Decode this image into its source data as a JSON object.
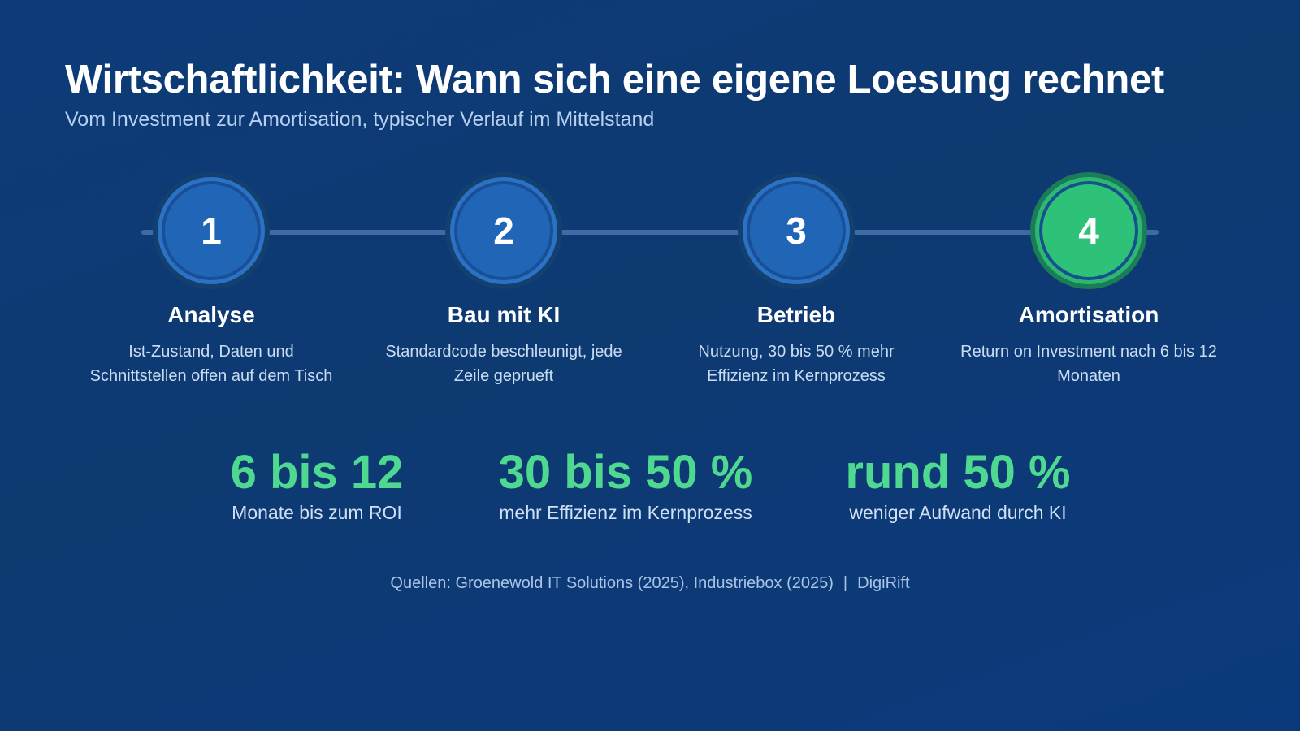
{
  "header": {
    "title": "Wirtschaftlichkeit: Wann sich eine eigene Loesung rechnet",
    "subtitle": "Vom Investment zur Amortisation, typischer Verlauf im Mittelstand"
  },
  "steps": [
    {
      "number": "1",
      "title": "Analyse",
      "description": "Ist-Zustand, Daten und Schnittstellen offen auf dem Tisch",
      "color": "#2166b6"
    },
    {
      "number": "2",
      "title": "Bau mit KI",
      "description": "Standardcode beschleunigt, jede Zeile geprueft",
      "color": "#2166b6"
    },
    {
      "number": "3",
      "title": "Betrieb",
      "description": "Nutzung, 30 bis 50 % mehr Effizienz im Kernprozess",
      "color": "#2166b6"
    },
    {
      "number": "4",
      "title": "Amortisation",
      "description": "Return on Investment nach 6 bis 12 Monaten",
      "color": "#2dc277"
    }
  ],
  "stats": [
    {
      "value": "6 bis 12",
      "label": "Monate bis zum ROI"
    },
    {
      "value": "30 bis 50 %",
      "label": "mehr Effizienz im Kernprozess"
    },
    {
      "value": "rund 50 %",
      "label": "weniger Aufwand durch KI"
    }
  ],
  "footer": {
    "sources": "Quellen: Groenewold IT Solutions (2025), Industriebox (2025)",
    "separator": "|",
    "brand": "DigiRift"
  },
  "colors": {
    "background": "#0d3b78",
    "accent_green": "#4fd890",
    "step_blue": "#2166b6",
    "step_green": "#2dc277"
  }
}
